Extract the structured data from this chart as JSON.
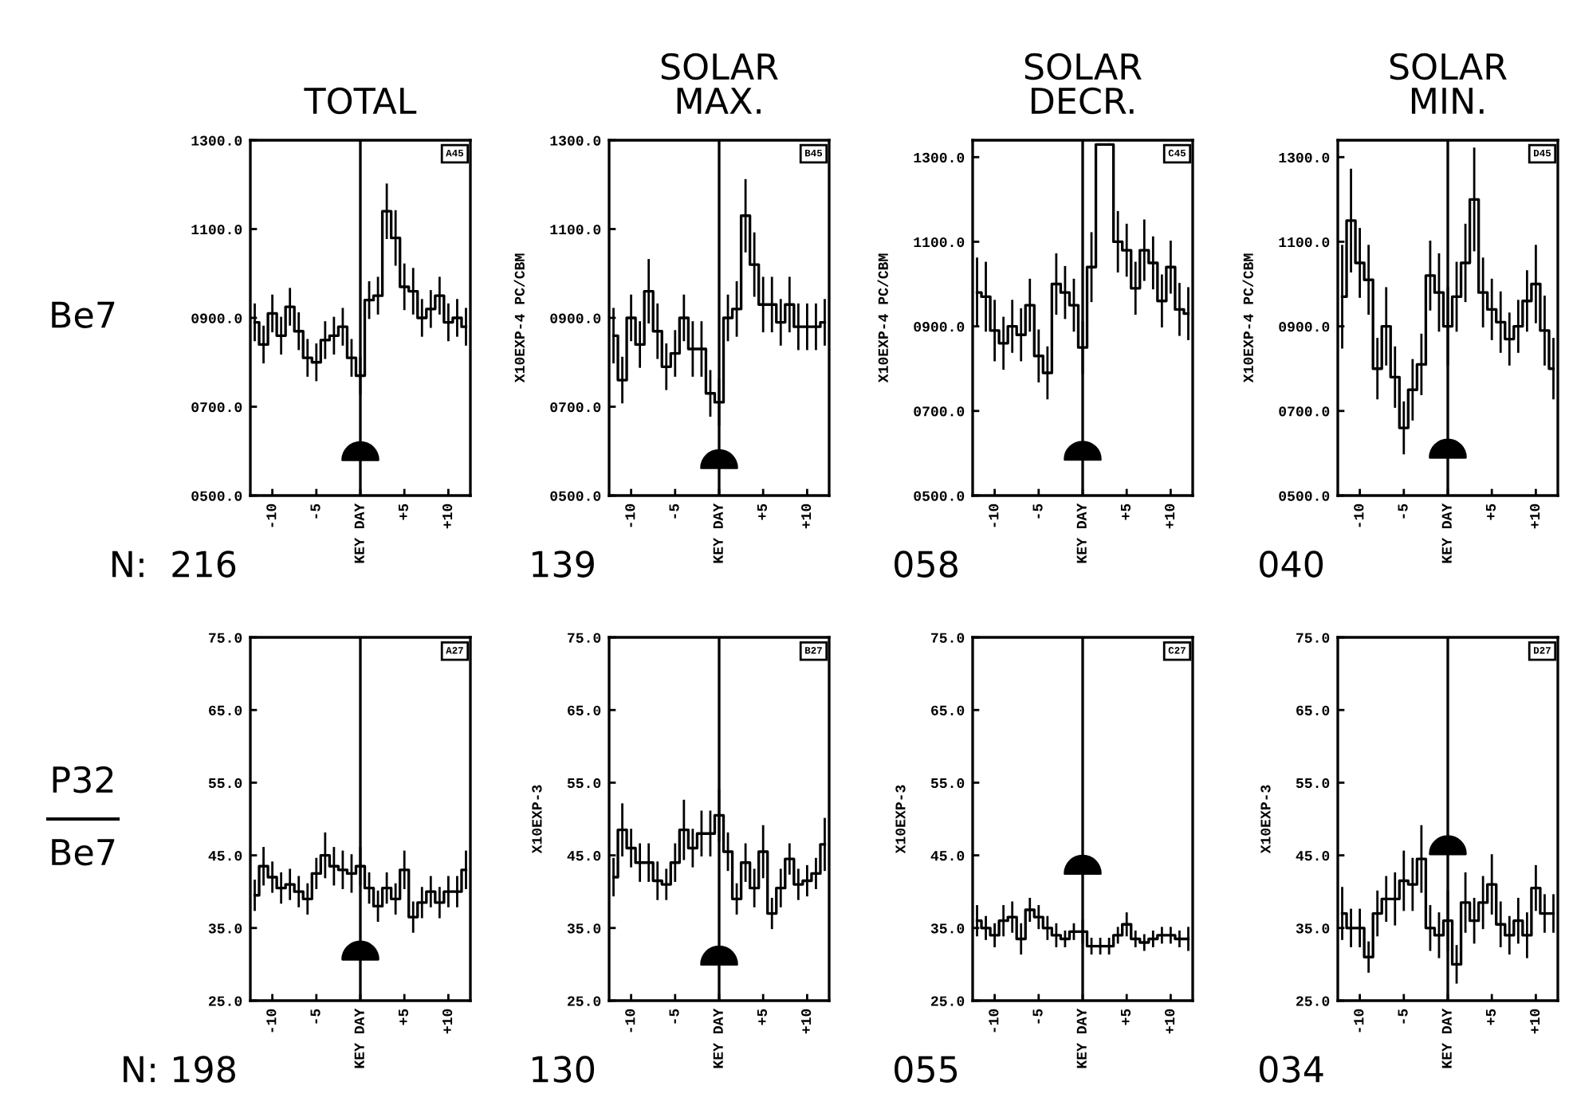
{
  "chart_data": [
    {
      "type": "step",
      "title": "TOTAL",
      "x": [
        -12,
        -11,
        -10,
        -9,
        -8,
        -7,
        -6,
        -5,
        -4,
        -3,
        -2,
        -1,
        0,
        1,
        2,
        3,
        4,
        5,
        6,
        7,
        8,
        9,
        10,
        11,
        12
      ],
      "xlim": [
        -12.5,
        12.5
      ],
      "xticks": [
        {
          "value": -10,
          "label": "-10"
        },
        {
          "value": -5,
          "label": "-5"
        },
        {
          "value": 0,
          "label": "KEY DAY"
        },
        {
          "value": 5,
          "label": "+5"
        },
        {
          "value": 10,
          "label": "+10"
        }
      ],
      "ylim": [
        500,
        1300
      ],
      "yticks": [
        {
          "value": 500,
          "label": "0500.0"
        },
        {
          "value": 700,
          "label": "0700.0"
        },
        {
          "value": 900,
          "label": "0900.0"
        },
        {
          "value": 1100,
          "label": "1100.0"
        },
        {
          "value": 1300,
          "label": "1300.0"
        }
      ],
      "series": [
        {
          "color": "#000000",
          "values": [
            890,
            840,
            910,
            860,
            925,
            870,
            810,
            800,
            850,
            860,
            880,
            810,
            770,
            940,
            950,
            1140,
            1080,
            970,
            960,
            900,
            920,
            950,
            890,
            900,
            880
          ],
          "errors": [
            40,
            40,
            40,
            40,
            40,
            40,
            40,
            40,
            40,
            40,
            40,
            40,
            40,
            40,
            40,
            60,
            60,
            50,
            50,
            40,
            40,
            40,
            40,
            40,
            40
          ]
        },
        {
          "type": "scatter",
          "color": "#000000",
          "values": [
            null,
            null,
            null,
            null,
            null,
            null,
            null,
            null,
            null,
            null,
            null,
            null,
            600,
            null,
            null,
            null,
            null,
            null,
            null,
            null,
            null,
            null,
            null,
            null,
            null
          ]
        }
      ],
      "ref_lines": [
        {
          "axis": "x",
          "value": 0,
          "color": "#000000"
        }
      ],
      "annotations": [
        "A45",
        "N:  216",
        "Be7"
      ],
      "grid": false
    },
    {
      "type": "step",
      "title": "SOLAR\nMAX.",
      "ylabel": "X10EXP-4 PC/CBM",
      "x": [
        -12,
        -11,
        -10,
        -9,
        -8,
        -7,
        -6,
        -5,
        -4,
        -3,
        -2,
        -1,
        0,
        1,
        2,
        3,
        4,
        5,
        6,
        7,
        8,
        9,
        10,
        11,
        12
      ],
      "xlim": [
        -12.5,
        12.5
      ],
      "xticks": [
        {
          "value": -10,
          "label": "-10"
        },
        {
          "value": -5,
          "label": "-5"
        },
        {
          "value": 0,
          "label": "KEY DAY"
        },
        {
          "value": 5,
          "label": "+5"
        },
        {
          "value": 10,
          "label": "+10"
        }
      ],
      "ylim": [
        500,
        1300
      ],
      "yticks": [
        {
          "value": 500,
          "label": "0500.0"
        },
        {
          "value": 700,
          "label": "0700.0"
        },
        {
          "value": 900,
          "label": "0900.0"
        },
        {
          "value": 1100,
          "label": "1100.0"
        },
        {
          "value": 1300,
          "label": "1300.0"
        }
      ],
      "series": [
        {
          "color": "#000000",
          "values": [
            860,
            760,
            900,
            840,
            960,
            870,
            790,
            820,
            900,
            830,
            830,
            730,
            710,
            900,
            920,
            1130,
            1020,
            930,
            930,
            890,
            930,
            880,
            880,
            880,
            890
          ],
          "errors": [
            60,
            50,
            50,
            50,
            70,
            60,
            50,
            50,
            50,
            60,
            60,
            50,
            50,
            50,
            60,
            80,
            70,
            60,
            60,
            50,
            60,
            50,
            50,
            50,
            50
          ]
        },
        {
          "type": "scatter",
          "color": "#000000",
          "values": [
            null,
            null,
            null,
            null,
            null,
            null,
            null,
            null,
            null,
            null,
            null,
            null,
            582,
            null,
            null,
            null,
            null,
            null,
            null,
            null,
            null,
            null,
            null,
            null,
            null
          ]
        }
      ],
      "ref_lines": [
        {
          "axis": "x",
          "value": 0,
          "color": "#000000"
        }
      ],
      "annotations": [
        "B45",
        "139"
      ],
      "grid": false
    },
    {
      "type": "step",
      "title": "SOLAR\nDECR.",
      "ylabel": "X10EXP-4 PC/CBM",
      "x": [
        -12,
        -11,
        -10,
        -9,
        -8,
        -7,
        -6,
        -5,
        -4,
        -3,
        -2,
        -1,
        0,
        1,
        2,
        3,
        4,
        5,
        6,
        7,
        8,
        9,
        10,
        11,
        12
      ],
      "xlim": [
        -12.5,
        12.5
      ],
      "xticks": [
        {
          "value": -10,
          "label": "-10"
        },
        {
          "value": -5,
          "label": "-5"
        },
        {
          "value": 0,
          "label": "KEY DAY"
        },
        {
          "value": 5,
          "label": "+5"
        },
        {
          "value": 10,
          "label": "+10"
        }
      ],
      "ylim": [
        500,
        1340
      ],
      "yticks": [
        {
          "value": 500,
          "label": "0500.0"
        },
        {
          "value": 700,
          "label": "0700.0"
        },
        {
          "value": 900,
          "label": "0900.0"
        },
        {
          "value": 1100,
          "label": "1100.0"
        },
        {
          "value": 1300,
          "label": "1300.0"
        }
      ],
      "series": [
        {
          "color": "#000000",
          "values": [
            980,
            970,
            890,
            860,
            900,
            880,
            950,
            830,
            790,
            1000,
            980,
            950,
            850,
            1040,
            1330,
            1330,
            1100,
            1080,
            990,
            1080,
            1050,
            960,
            1040,
            940,
            930
          ],
          "errors": [
            80,
            80,
            70,
            60,
            60,
            60,
            60,
            60,
            60,
            70,
            60,
            60,
            60,
            80,
            0,
            0,
            70,
            60,
            60,
            70,
            60,
            60,
            60,
            60,
            60
          ]
        },
        {
          "type": "scatter",
          "color": "#000000",
          "values": [
            null,
            null,
            null,
            null,
            null,
            null,
            null,
            null,
            null,
            null,
            null,
            null,
            606,
            null,
            null,
            null,
            null,
            null,
            null,
            null,
            null,
            null,
            null,
            null,
            null
          ]
        }
      ],
      "ref_lines": [
        {
          "axis": "x",
          "value": 0,
          "color": "#000000"
        }
      ],
      "annotations": [
        "C45",
        "058"
      ],
      "grid": false
    },
    {
      "type": "step",
      "title": "SOLAR\nMIN.",
      "ylabel": "X10EXP-4 PC/CBM",
      "x": [
        -12,
        -11,
        -10,
        -9,
        -8,
        -7,
        -6,
        -5,
        -4,
        -3,
        -2,
        -1,
        0,
        1,
        2,
        3,
        4,
        5,
        6,
        7,
        8,
        9,
        10,
        11,
        12
      ],
      "xlim": [
        -12.5,
        12.5
      ],
      "xticks": [
        {
          "value": -10,
          "label": "-10"
        },
        {
          "value": -5,
          "label": "-5"
        },
        {
          "value": 0,
          "label": "KEY DAY"
        },
        {
          "value": 5,
          "label": "+5"
        },
        {
          "value": 10,
          "label": "+10"
        }
      ],
      "ylim": [
        500,
        1340
      ],
      "yticks": [
        {
          "value": 500,
          "label": "0500.0"
        },
        {
          "value": 700,
          "label": "0700.0"
        },
        {
          "value": 900,
          "label": "0900.0"
        },
        {
          "value": 1100,
          "label": "1100.0"
        },
        {
          "value": 1300,
          "label": "1300.0"
        }
      ],
      "series": [
        {
          "color": "#000000",
          "values": [
            970,
            1150,
            1050,
            1010,
            800,
            900,
            780,
            660,
            750,
            810,
            1020,
            980,
            900,
            970,
            1050,
            1200,
            980,
            940,
            910,
            870,
            900,
            960,
            1000,
            890,
            800
          ],
          "errors": [
            120,
            120,
            80,
            80,
            70,
            90,
            70,
            60,
            70,
            70,
            80,
            90,
            90,
            80,
            90,
            120,
            80,
            70,
            70,
            60,
            60,
            70,
            90,
            80,
            70
          ]
        },
        {
          "type": "scatter",
          "color": "#000000",
          "values": [
            null,
            null,
            null,
            null,
            null,
            null,
            null,
            null,
            null,
            null,
            null,
            null,
            611,
            null,
            null,
            null,
            null,
            null,
            null,
            null,
            null,
            null,
            null,
            null,
            null
          ]
        }
      ],
      "ref_lines": [
        {
          "axis": "x",
          "value": 0,
          "color": "#000000"
        }
      ],
      "annotations": [
        "D45",
        "040"
      ],
      "grid": false
    },
    {
      "type": "step",
      "x": [
        -12,
        -11,
        -10,
        -9,
        -8,
        -7,
        -6,
        -5,
        -4,
        -3,
        -2,
        -1,
        0,
        1,
        2,
        3,
        4,
        5,
        6,
        7,
        8,
        9,
        10,
        11,
        12
      ],
      "xlim": [
        -12.5,
        12.5
      ],
      "xticks": [
        {
          "value": -10,
          "label": "-10"
        },
        {
          "value": -5,
          "label": "-5"
        },
        {
          "value": 0,
          "label": "KEY DAY"
        },
        {
          "value": 5,
          "label": "+5"
        },
        {
          "value": 10,
          "label": "+10"
        }
      ],
      "ylim": [
        25,
        75
      ],
      "yticks": [
        {
          "value": 25,
          "label": "25.0"
        },
        {
          "value": 35,
          "label": "35.0"
        },
        {
          "value": 45,
          "label": "45.0"
        },
        {
          "value": 55,
          "label": "55.0"
        },
        {
          "value": 65,
          "label": "65.0"
        },
        {
          "value": 75,
          "label": "75.0"
        }
      ],
      "series": [
        {
          "color": "#000000",
          "values": [
            39.5,
            43.5,
            42,
            40.5,
            41,
            40,
            39,
            42.5,
            45,
            43.5,
            43,
            42.5,
            43.5,
            40.5,
            38,
            40.5,
            39,
            43,
            36.5,
            38.5,
            40,
            38.5,
            40,
            40,
            43
          ],
          "errors": [
            2,
            2.5,
            2,
            2,
            2,
            2,
            2,
            2,
            3,
            2.5,
            2.5,
            2.5,
            2.5,
            2,
            2,
            2,
            2,
            2.5,
            2,
            2,
            2,
            2,
            2,
            2,
            2.5
          ]
        },
        {
          "type": "scatter",
          "color": "#000000",
          "values": [
            null,
            null,
            null,
            null,
            null,
            null,
            null,
            null,
            null,
            null,
            null,
            null,
            31.9,
            null,
            null,
            null,
            null,
            null,
            null,
            null,
            null,
            null,
            null,
            null,
            null
          ]
        }
      ],
      "ref_lines": [
        {
          "axis": "x",
          "value": 0,
          "color": "#000000"
        }
      ],
      "annotations": [
        "A27",
        "N: 198",
        "P32",
        "Be7"
      ],
      "grid": false
    },
    {
      "type": "step",
      "ylabel": "X10EXP-3",
      "x": [
        -12,
        -11,
        -10,
        -9,
        -8,
        -7,
        -6,
        -5,
        -4,
        -3,
        -2,
        -1,
        0,
        1,
        2,
        3,
        4,
        5,
        6,
        7,
        8,
        9,
        10,
        11,
        12
      ],
      "xlim": [
        -12.5,
        12.5
      ],
      "xticks": [
        {
          "value": -10,
          "label": "-10"
        },
        {
          "value": -5,
          "label": "-5"
        },
        {
          "value": 0,
          "label": "KEY DAY"
        },
        {
          "value": 5,
          "label": "+5"
        },
        {
          "value": 10,
          "label": "+10"
        }
      ],
      "ylim": [
        25,
        75
      ],
      "yticks": [
        {
          "value": 25,
          "label": "25.0"
        },
        {
          "value": 35,
          "label": "35.0"
        },
        {
          "value": 45,
          "label": "45.0"
        },
        {
          "value": 55,
          "label": "55.0"
        },
        {
          "value": 65,
          "label": "65.0"
        },
        {
          "value": 75,
          "label": "75.0"
        }
      ],
      "series": [
        {
          "color": "#000000",
          "values": [
            42,
            48.5,
            46,
            44,
            44,
            41.5,
            41,
            44,
            48.5,
            46,
            48,
            48,
            50.5,
            45.5,
            39,
            44,
            40.5,
            45.5,
            37,
            40.5,
            44.5,
            41,
            41.5,
            42.5,
            46.5
          ],
          "errors": [
            2.5,
            3.5,
            2.5,
            2.5,
            2.5,
            2.5,
            2,
            2.5,
            4,
            2.5,
            3,
            3,
            3.5,
            2.5,
            2,
            2.5,
            2.5,
            3.5,
            2,
            2.5,
            2,
            2,
            2,
            2,
            3.5
          ]
        },
        {
          "type": "scatter",
          "color": "#000000",
          "values": [
            null,
            null,
            null,
            null,
            null,
            null,
            null,
            null,
            null,
            null,
            null,
            null,
            31.2,
            null,
            null,
            null,
            null,
            null,
            null,
            null,
            null,
            null,
            null,
            null,
            null
          ]
        }
      ],
      "ref_lines": [
        {
          "axis": "x",
          "value": 0,
          "color": "#000000"
        }
      ],
      "annotations": [
        "B27",
        "130"
      ],
      "grid": false
    },
    {
      "type": "step",
      "ylabel": "X10EXP-3",
      "x": [
        -12,
        -11,
        -10,
        -9,
        -8,
        -7,
        -6,
        -5,
        -4,
        -3,
        -2,
        -1,
        0,
        1,
        2,
        3,
        4,
        5,
        6,
        7,
        8,
        9,
        10,
        11,
        12
      ],
      "xlim": [
        -12.5,
        12.5
      ],
      "xticks": [
        {
          "value": -10,
          "label": "-10"
        },
        {
          "value": -5,
          "label": "-5"
        },
        {
          "value": 0,
          "label": "KEY DAY"
        },
        {
          "value": 5,
          "label": "+5"
        },
        {
          "value": 10,
          "label": "+10"
        }
      ],
      "ylim": [
        25,
        75
      ],
      "yticks": [
        {
          "value": 25,
          "label": "25.0"
        },
        {
          "value": 35,
          "label": "35.0"
        },
        {
          "value": 45,
          "label": "45.0"
        },
        {
          "value": 55,
          "label": "55.0"
        },
        {
          "value": 65,
          "label": "65.0"
        },
        {
          "value": 75,
          "label": "75.0"
        }
      ],
      "series": [
        {
          "color": "#000000",
          "values": [
            36,
            35,
            34,
            36,
            36.5,
            33.5,
            37.5,
            36.5,
            35,
            34,
            33.5,
            34.5,
            34.5,
            32.5,
            32.5,
            32.5,
            34,
            35.5,
            33.5,
            33,
            33.5,
            34,
            34,
            33.5,
            33.5
          ],
          "errors": [
            2,
            1.5,
            1.5,
            2,
            2,
            2,
            1.5,
            1.5,
            1.5,
            1.5,
            1,
            1,
            1.5,
            1,
            1,
            1,
            1,
            1.5,
            1,
            1,
            1,
            1,
            1,
            1,
            1.5
          ]
        },
        {
          "type": "scatter",
          "color": "#000000",
          "values": [
            null,
            null,
            null,
            null,
            null,
            null,
            null,
            null,
            null,
            null,
            null,
            null,
            43.7,
            null,
            null,
            null,
            null,
            null,
            null,
            null,
            null,
            null,
            null,
            null,
            null
          ]
        }
      ],
      "ref_lines": [
        {
          "axis": "x",
          "value": 0,
          "color": "#000000"
        }
      ],
      "annotations": [
        "C27",
        "055"
      ],
      "grid": false
    },
    {
      "type": "step",
      "ylabel": "X10EXP-3",
      "x": [
        -12,
        -11,
        -10,
        -9,
        -8,
        -7,
        -6,
        -5,
        -4,
        -3,
        -2,
        -1,
        0,
        1,
        2,
        3,
        4,
        5,
        6,
        7,
        8,
        9,
        10,
        11,
        12
      ],
      "xlim": [
        -12.5,
        12.5
      ],
      "xticks": [
        {
          "value": -10,
          "label": "-10"
        },
        {
          "value": -5,
          "label": "-5"
        },
        {
          "value": 0,
          "label": "KEY DAY"
        },
        {
          "value": 5,
          "label": "+5"
        },
        {
          "value": 10,
          "label": "+10"
        }
      ],
      "ylim": [
        25,
        75
      ],
      "yticks": [
        {
          "value": 25,
          "label": "25.0"
        },
        {
          "value": 35,
          "label": "35.0"
        },
        {
          "value": 45,
          "label": "45.0"
        },
        {
          "value": 55,
          "label": "55.0"
        },
        {
          "value": 65,
          "label": "65.0"
        },
        {
          "value": 75,
          "label": "75.0"
        }
      ],
      "series": [
        {
          "color": "#000000",
          "values": [
            37,
            35,
            35,
            31,
            37,
            39,
            39,
            41.5,
            41,
            44.5,
            35,
            34,
            36,
            30,
            38.5,
            36,
            38.5,
            41,
            35.5,
            34,
            36,
            34,
            40.5,
            37,
            37
          ],
          "errors": [
            3.5,
            2.5,
            2.5,
            2,
            3,
            3,
            3.5,
            4,
            3.5,
            4.5,
            3,
            3,
            4,
            2.5,
            4,
            3,
            3.5,
            4,
            3,
            2.5,
            3,
            3,
            3,
            2.5,
            2.5
          ]
        },
        {
          "type": "scatter",
          "color": "#000000",
          "values": [
            null,
            null,
            null,
            null,
            null,
            null,
            null,
            null,
            null,
            null,
            null,
            null,
            46.4,
            null,
            null,
            null,
            null,
            null,
            null,
            null,
            null,
            null,
            null,
            null,
            null
          ]
        }
      ],
      "ref_lines": [
        {
          "axis": "x",
          "value": 0,
          "color": "#000000"
        }
      ],
      "annotations": [
        "D27",
        "034"
      ],
      "grid": false
    }
  ]
}
